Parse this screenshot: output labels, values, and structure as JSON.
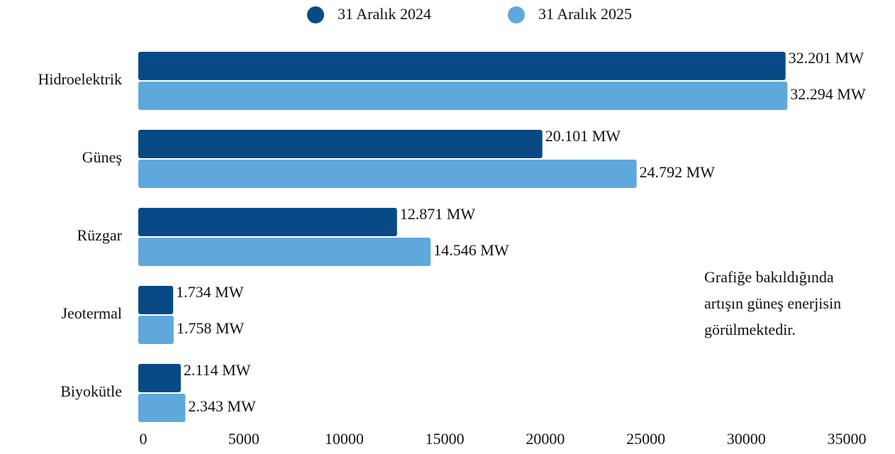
{
  "chart_data": {
    "type": "barh",
    "categories": [
      "Hidroelektrik",
      "Güneş",
      "Rüzgar",
      "Jeotermal",
      "Biyokütle"
    ],
    "series": [
      {
        "name": "31 Aralık 2024",
        "color": "#084a85",
        "values": [
          32201,
          20101,
          12871,
          1734,
          2114
        ],
        "value_labels": [
          "32.201 MW",
          "20.101 MW",
          "12.871 MW",
          "1.734 MW",
          "2.114 MW"
        ]
      },
      {
        "name": "31 Aralık 2025",
        "color": "#5fa8dc",
        "values": [
          32294,
          24792,
          14546,
          1758,
          2343
        ],
        "value_labels": [
          "32.294 MW",
          "24.792 MW",
          "14.546 MW",
          "1.758 MW",
          "2.343 MW"
        ]
      }
    ],
    "xlim": [
      0,
      35000
    ],
    "xticks": [
      0,
      5000,
      10000,
      15000,
      20000,
      25000,
      30000,
      35000
    ],
    "grid": false,
    "legend": "top",
    "annotation": [
      "Grafiğe bakıldığında",
      "artışın güneş enerjisin",
      "görülmektedir."
    ]
  }
}
